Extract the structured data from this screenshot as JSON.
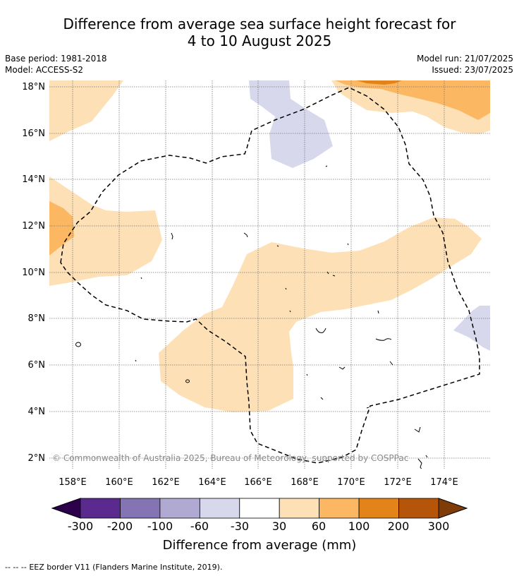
{
  "title": {
    "line1": "Difference from average sea surface height forecast for",
    "line2": "4 to 10 August 2025"
  },
  "meta": {
    "base_period": "Base period: 1981-2018",
    "model": "Model: ACCESS-S2",
    "model_run": "Model run: 21/07/2025",
    "issued": "Issued: 23/07/2025"
  },
  "map": {
    "lon_ticks": [
      "158°E",
      "160°E",
      "162°E",
      "164°E",
      "166°E",
      "168°E",
      "170°E",
      "172°E",
      "174°E"
    ],
    "lat_ticks": [
      "18°N",
      "16°N",
      "14°N",
      "12°N",
      "10°N",
      "8°N",
      "6°N",
      "4°N",
      "2°N"
    ],
    "copyright": "© Commonwealth of Australia 2025, Bureau of Meteorology, supported by COSPPac",
    "eez_style": "dashed"
  },
  "colorbar": {
    "labels": [
      "-300",
      "-200",
      "-100",
      "-60",
      "-30",
      "30",
      "60",
      "100",
      "200",
      "300"
    ],
    "colors": [
      "#5b2a8e",
      "#8574b4",
      "#b0a9d2",
      "#d8d8ec",
      "#ffffff",
      "#fde0b5",
      "#fbb762",
      "#e3841b",
      "#b45509"
    ],
    "under_color": "#2d004b",
    "over_color": "#7f3b08",
    "title": "Difference from average (mm)"
  },
  "footer": {
    "legend_symbol": "--  --  --",
    "text": "EEZ border V11 (Flanders Marine Institute, 2019)."
  }
}
